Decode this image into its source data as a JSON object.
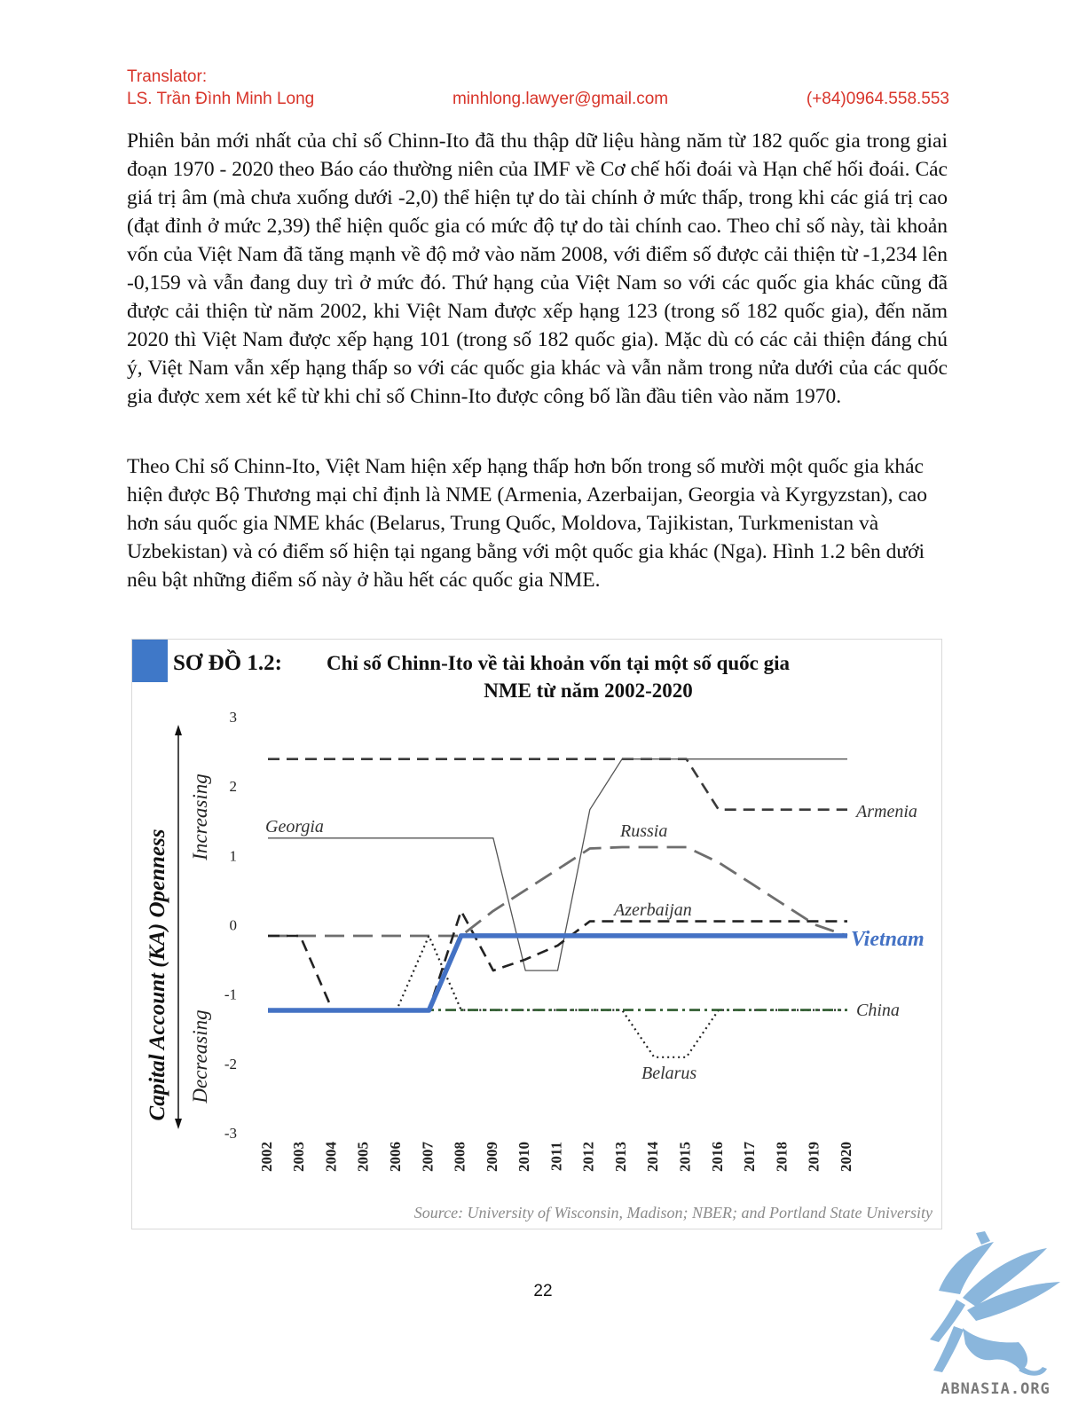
{
  "header": {
    "translator_label": "Translator:",
    "name": "LS. Trần Đình Minh Long",
    "email": "minhlong.lawyer@gmail.com",
    "phone": "(+84)0964.558.553"
  },
  "paragraphs": [
    "Phiên bản mới nhất của chỉ số Chinn-Ito đã thu thập dữ liệu hàng năm từ 182 quốc gia trong giai đoạn 1970 - 2020 theo Báo cáo thường niên của IMF về Cơ chế hối đoái và Hạn chế hối đoái. Các giá trị âm (mà chưa xuống dưới -2,0) thể hiện tự do tài chính ở mức thấp, trong khi các giá trị cao (đạt đỉnh ở mức 2,39) thể hiện quốc gia có mức độ tự do tài chính cao. Theo chỉ số này, tài khoản vốn của Việt Nam đã tăng mạnh về độ mở vào năm 2008, với điểm số được cải thiện từ -1,234 lên -0,159 và vẫn đang duy trì ở mức đó. Thứ hạng của Việt Nam so với các quốc gia khác cũng đã được cải thiện từ năm 2002, khi Việt Nam được xếp hạng 123 (trong số 182 quốc gia), đến năm 2020 thì Việt Nam được xếp hạng 101 (trong số 182 quốc gia). Mặc dù có các cải thiện đáng chú ý, Việt Nam vẫn xếp hạng thấp so với các quốc gia khác và vẫn nằm trong nửa dưới của các quốc gia được xem xét kể từ khi chỉ số Chinn-Ito được công bố lần đầu tiên vào năm 1970.",
    "Theo Chỉ số Chinn-Ito, Việt Nam hiện xếp hạng thấp hơn bốn trong số mười một quốc gia khác hiện được Bộ Thương mại chỉ định là NME (Armenia, Azerbaijan, Georgia và Kyrgyzstan), cao hơn sáu quốc gia NME khác (Belarus, Trung Quốc, Moldova, Tajikistan, Turkmenistan và Uzbekistan) và có điểm số hiện tại ngang bằng với một quốc gia khác (Nga). Hình 1.2 bên dưới nêu bật những điểm số này ở hầu hết các quốc gia NME."
  ],
  "figure": {
    "title_prefix": "SƠ ĐỒ 1.2:",
    "title_line1": "Chỉ số Chinn-Ito về tài khoản vốn tại một số quốc gia",
    "title_line2": "NME từ năm 2002-2020",
    "source": "Source: University of Wisconsin, Madison; NBER; and Portland State University"
  },
  "chart_data": {
    "type": "line",
    "ylabel": "Capital Account (KA) Openness",
    "y_arrow_up_label": "Increasing",
    "y_arrow_down_label": "Decreasing",
    "ylim": [
      -3,
      3
    ],
    "yticks": [
      "3",
      "2",
      "1",
      "0",
      "-1",
      "-2",
      "-3"
    ],
    "x": [
      "2002",
      "2003",
      "2004",
      "2005",
      "2006",
      "2007",
      "2008",
      "2009",
      "2010",
      "2011",
      "2012",
      "2013",
      "2014",
      "2015",
      "2016",
      "2017",
      "2018",
      "2019",
      "2020"
    ],
    "grid": false,
    "legend": "inline labels",
    "series": [
      {
        "name": "Armenia",
        "color": "#3a3a3a",
        "style": "dashed",
        "values": [
          2.39,
          2.39,
          2.39,
          2.39,
          2.39,
          2.39,
          2.39,
          2.39,
          2.39,
          2.39,
          2.39,
          2.39,
          2.39,
          2.39,
          1.66,
          1.66,
          1.66,
          1.66,
          1.66
        ]
      },
      {
        "name": "Georgia",
        "color": "#555555",
        "style": "thin",
        "values": [
          1.25,
          1.25,
          1.25,
          1.25,
          1.25,
          1.25,
          1.25,
          1.25,
          -0.66,
          -0.66,
          1.66,
          2.39,
          2.39,
          2.39,
          2.39,
          2.39,
          2.39,
          2.39,
          2.39
        ]
      },
      {
        "name": "Russia",
        "color": "#6e6e6e",
        "style": "longdash",
        "values": [
          -0.16,
          -0.16,
          -0.16,
          -0.16,
          -0.16,
          -0.16,
          -0.16,
          0.2,
          0.5,
          0.8,
          1.1,
          1.12,
          1.12,
          1.12,
          0.9,
          0.6,
          0.3,
          0.0,
          -0.16
        ]
      },
      {
        "name": "Azerbaijan",
        "color": "#222222",
        "style": "dashed",
        "values": [
          -0.16,
          -0.16,
          -1.23,
          -1.23,
          -1.23,
          -1.23,
          0.2,
          -0.66,
          -0.5,
          -0.3,
          0.05,
          0.05,
          0.05,
          0.05,
          0.05,
          0.05,
          0.05,
          0.05,
          0.05
        ]
      },
      {
        "name": "Belarus",
        "color": "#222222",
        "style": "dotted",
        "values": [
          -1.23,
          -1.23,
          -1.23,
          -1.23,
          -1.23,
          -0.16,
          -1.23,
          -1.23,
          -1.23,
          -1.23,
          -1.23,
          -1.23,
          -1.91,
          -1.91,
          -1.23,
          -1.23,
          -1.23,
          -1.23,
          -1.23
        ]
      },
      {
        "name": "China",
        "color": "#2d5a2d",
        "style": "dashdot",
        "values": [
          -1.23,
          -1.23,
          -1.23,
          -1.23,
          -1.23,
          -1.23,
          -1.23,
          -1.23,
          -1.23,
          -1.23,
          -1.23,
          -1.23,
          -1.23,
          -1.23,
          -1.23,
          -1.23,
          -1.23,
          -1.23,
          -1.23
        ]
      },
      {
        "name": "Vietnam",
        "color": "#4472c4",
        "style": "bold",
        "values": [
          -1.234,
          -1.234,
          -1.234,
          -1.234,
          -1.234,
          -1.234,
          -0.159,
          -0.159,
          -0.159,
          -0.159,
          -0.159,
          -0.159,
          -0.159,
          -0.159,
          -0.159,
          -0.159,
          -0.159,
          -0.159,
          -0.159
        ]
      }
    ]
  },
  "page_number": "22",
  "logo_text": "ABNASIA.ORG",
  "colors": {
    "header_red": "#d8342a",
    "accent_blue": "#3f78c8",
    "logo_blue": "#8ab6dc"
  }
}
